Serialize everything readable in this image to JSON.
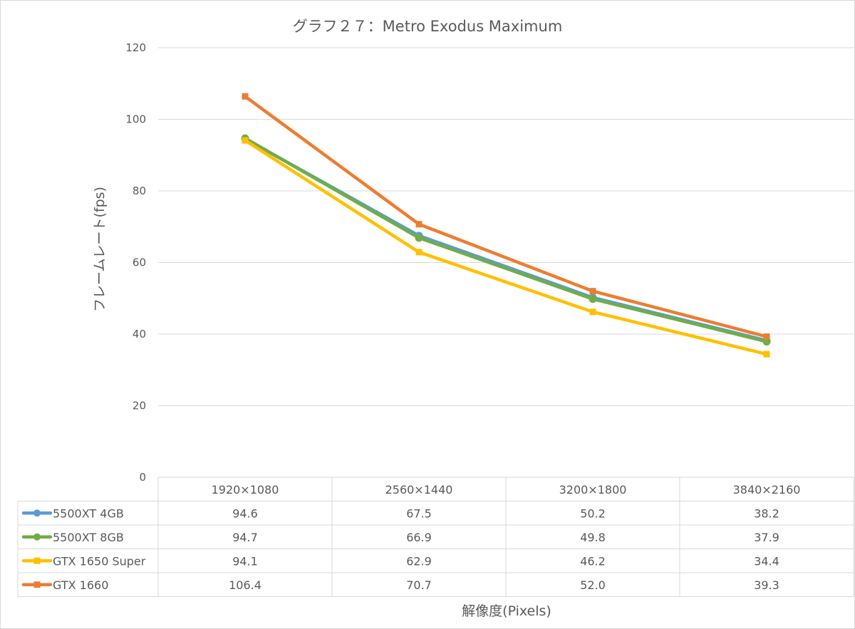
{
  "chart_data": {
    "type": "line",
    "title": "グラフ２７：Metro Exodus Maximum",
    "xlabel": "解像度(Pixels)",
    "ylabel": "フレームレート(fps)",
    "ylim": [
      0,
      120
    ],
    "yticks": [
      0,
      20,
      40,
      60,
      80,
      100,
      120
    ],
    "grid": true,
    "legend": "data-table",
    "categories": [
      "1920×1080",
      "2560×1440",
      "3200×1800",
      "3840×2160"
    ],
    "series": [
      {
        "name": "5500XT 4GB",
        "color": "#5b9bd5",
        "marker": "circle",
        "values": [
          94.6,
          67.5,
          50.2,
          38.2
        ],
        "labels": [
          "94.6",
          "67.5",
          "50.2",
          "38.2"
        ]
      },
      {
        "name": "5500XT 8GB",
        "color": "#70ad47",
        "marker": "circle",
        "values": [
          94.7,
          66.9,
          49.8,
          37.9
        ],
        "labels": [
          "94.7",
          "66.9",
          "49.8",
          "37.9"
        ]
      },
      {
        "name": "GTX 1650 Super",
        "color": "#ffc000",
        "marker": "square",
        "values": [
          94.1,
          62.9,
          46.2,
          34.4
        ],
        "labels": [
          "94.1",
          "62.9",
          "46.2",
          "34.4"
        ]
      },
      {
        "name": "GTX 1660",
        "color": "#ed7d31",
        "marker": "square",
        "values": [
          106.4,
          70.7,
          52.0,
          39.3
        ],
        "labels": [
          "106.4",
          "70.7",
          "52.0",
          "39.3"
        ]
      }
    ]
  }
}
